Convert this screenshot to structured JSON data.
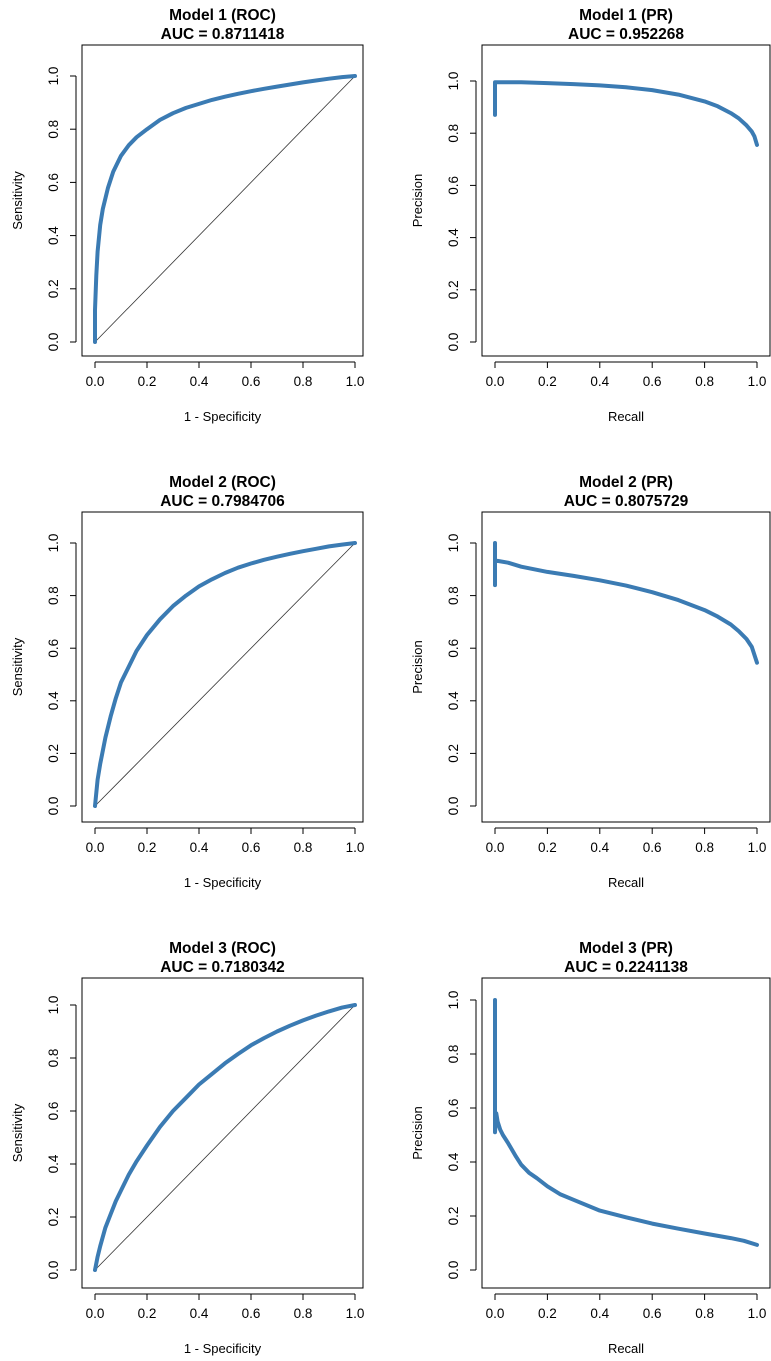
{
  "colors": {
    "curve": "#3b7bb3",
    "diagonal": "#333333",
    "frame": "#000000"
  },
  "chart_data": [
    {
      "type": "line",
      "kind": "roc",
      "title": "Model 1 (ROC)",
      "subtitle": "AUC = 0.8711418",
      "xlabel": "1 - Specificity",
      "ylabel": "Sensitivity",
      "xlim": [
        0,
        1
      ],
      "ylim": [
        0,
        1
      ],
      "xticks": [
        "0.0",
        "0.2",
        "0.4",
        "0.6",
        "0.8",
        "1.0"
      ],
      "yticks": [
        "0.0",
        "0.2",
        "0.4",
        "0.6",
        "0.8",
        "1.0"
      ],
      "grid": false,
      "reference_line": true,
      "series": [
        {
          "x": [
            0,
            0,
            0.005,
            0.01,
            0.02,
            0.03,
            0.05,
            0.07,
            0.1,
            0.13,
            0.16,
            0.2,
            0.25,
            0.3,
            0.35,
            0.4,
            0.45,
            0.5,
            0.55,
            0.6,
            0.65,
            0.7,
            0.75,
            0.8,
            0.85,
            0.9,
            0.95,
            1
          ],
          "y": [
            0,
            0.12,
            0.25,
            0.34,
            0.44,
            0.5,
            0.58,
            0.64,
            0.7,
            0.74,
            0.77,
            0.8,
            0.835,
            0.86,
            0.88,
            0.895,
            0.91,
            0.922,
            0.933,
            0.943,
            0.952,
            0.96,
            0.968,
            0.976,
            0.983,
            0.99,
            0.996,
            1
          ]
        }
      ]
    },
    {
      "type": "line",
      "kind": "pr",
      "title": "Model 1 (PR)",
      "subtitle": "AUC = 0.952268",
      "xlabel": "Recall",
      "ylabel": "Precision",
      "xlim": [
        0,
        1
      ],
      "ylim": [
        0,
        1
      ],
      "xticks": [
        "0.0",
        "0.2",
        "0.4",
        "0.6",
        "0.8",
        "1.0"
      ],
      "yticks": [
        "0.0",
        "0.2",
        "0.4",
        "0.6",
        "0.8",
        "1.0"
      ],
      "grid": false,
      "reference_line": false,
      "series": [
        {
          "x": [
            0,
            0,
            0,
            0.01,
            0.05,
            0.1,
            0.2,
            0.3,
            0.4,
            0.5,
            0.6,
            0.7,
            0.8,
            0.85,
            0.9,
            0.93,
            0.96,
            0.98,
            0.99,
            1
          ],
          "y": [
            0.87,
            0.93,
            0.995,
            0.995,
            0.995,
            0.995,
            0.992,
            0.988,
            0.983,
            0.976,
            0.965,
            0.948,
            0.922,
            0.903,
            0.877,
            0.857,
            0.83,
            0.806,
            0.788,
            0.755
          ]
        }
      ]
    },
    {
      "type": "line",
      "kind": "roc",
      "title": "Model 2 (ROC)",
      "subtitle": "AUC = 0.7984706",
      "xlabel": "1 - Specificity",
      "ylabel": "Sensitivity",
      "xlim": [
        0,
        1
      ],
      "ylim": [
        0,
        1
      ],
      "xticks": [
        "0.0",
        "0.2",
        "0.4",
        "0.6",
        "0.8",
        "1.0"
      ],
      "yticks": [
        "0.0",
        "0.2",
        "0.4",
        "0.6",
        "0.8",
        "1.0"
      ],
      "grid": false,
      "reference_line": true,
      "series": [
        {
          "x": [
            0,
            0.01,
            0.02,
            0.04,
            0.06,
            0.08,
            0.1,
            0.13,
            0.16,
            0.2,
            0.25,
            0.3,
            0.35,
            0.4,
            0.45,
            0.5,
            0.55,
            0.6,
            0.65,
            0.7,
            0.75,
            0.8,
            0.85,
            0.9,
            0.95,
            1
          ],
          "y": [
            0,
            0.1,
            0.16,
            0.26,
            0.34,
            0.41,
            0.47,
            0.53,
            0.59,
            0.65,
            0.71,
            0.76,
            0.8,
            0.835,
            0.862,
            0.886,
            0.906,
            0.922,
            0.936,
            0.948,
            0.959,
            0.969,
            0.978,
            0.987,
            0.994,
            1
          ]
        }
      ]
    },
    {
      "type": "line",
      "kind": "pr",
      "title": "Model 2 (PR)",
      "subtitle": "AUC = 0.8075729",
      "xlabel": "Recall",
      "ylabel": "Precision",
      "xlim": [
        0,
        1
      ],
      "ylim": [
        0,
        1
      ],
      "xticks": [
        "0.0",
        "0.2",
        "0.4",
        "0.6",
        "0.8",
        "1.0"
      ],
      "yticks": [
        "0.0",
        "0.2",
        "0.4",
        "0.6",
        "0.8",
        "1.0"
      ],
      "grid": false,
      "reference_line": false,
      "series": [
        {
          "x": [
            0,
            0,
            0,
            0.01,
            0.05,
            0.1,
            0.2,
            0.3,
            0.4,
            0.5,
            0.6,
            0.7,
            0.8,
            0.85,
            0.9,
            0.93,
            0.96,
            0.98,
            1
          ],
          "y": [
            0.84,
            1.0,
            0.93,
            0.932,
            0.925,
            0.91,
            0.89,
            0.875,
            0.858,
            0.838,
            0.813,
            0.783,
            0.745,
            0.72,
            0.69,
            0.665,
            0.635,
            0.605,
            0.545
          ]
        }
      ]
    },
    {
      "type": "line",
      "kind": "roc",
      "title": "Model 3 (ROC)",
      "subtitle": "AUC = 0.7180342",
      "xlabel": "1 - Specificity",
      "ylabel": "Sensitivity",
      "xlim": [
        0,
        1
      ],
      "ylim": [
        0,
        1
      ],
      "xticks": [
        "0.0",
        "0.2",
        "0.4",
        "0.6",
        "0.8",
        "1.0"
      ],
      "yticks": [
        "0.0",
        "0.2",
        "0.4",
        "0.6",
        "0.8",
        "1.0"
      ],
      "grid": false,
      "reference_line": true,
      "series": [
        {
          "x": [
            0,
            0.01,
            0.02,
            0.04,
            0.06,
            0.08,
            0.1,
            0.13,
            0.16,
            0.2,
            0.25,
            0.3,
            0.35,
            0.4,
            0.45,
            0.5,
            0.55,
            0.6,
            0.65,
            0.7,
            0.75,
            0.8,
            0.85,
            0.9,
            0.95,
            1
          ],
          "y": [
            0,
            0.05,
            0.09,
            0.16,
            0.21,
            0.26,
            0.3,
            0.36,
            0.41,
            0.47,
            0.54,
            0.6,
            0.65,
            0.7,
            0.74,
            0.78,
            0.815,
            0.848,
            0.875,
            0.9,
            0.922,
            0.942,
            0.96,
            0.976,
            0.99,
            1
          ]
        }
      ]
    },
    {
      "type": "line",
      "kind": "pr",
      "title": "Model 3 (PR)",
      "subtitle": "AUC = 0.2241138",
      "xlabel": "Recall",
      "ylabel": "Precision",
      "xlim": [
        0,
        1
      ],
      "ylim": [
        0,
        1
      ],
      "xticks": [
        "0.0",
        "0.2",
        "0.4",
        "0.6",
        "0.8",
        "1.0"
      ],
      "yticks": [
        "0.0",
        "0.2",
        "0.4",
        "0.6",
        "0.8",
        "1.0"
      ],
      "grid": false,
      "reference_line": false,
      "series": [
        {
          "x": [
            0,
            0,
            0,
            0.005,
            0.01,
            0.02,
            0.03,
            0.05,
            0.08,
            0.1,
            0.13,
            0.16,
            0.2,
            0.25,
            0.3,
            0.4,
            0.5,
            0.6,
            0.7,
            0.8,
            0.9,
            0.95,
            1
          ],
          "y": [
            1.0,
            0.6,
            0.51,
            0.58,
            0.55,
            0.52,
            0.5,
            0.47,
            0.42,
            0.39,
            0.36,
            0.34,
            0.31,
            0.28,
            0.26,
            0.22,
            0.195,
            0.172,
            0.153,
            0.135,
            0.118,
            0.108,
            0.093
          ]
        }
      ]
    }
  ]
}
